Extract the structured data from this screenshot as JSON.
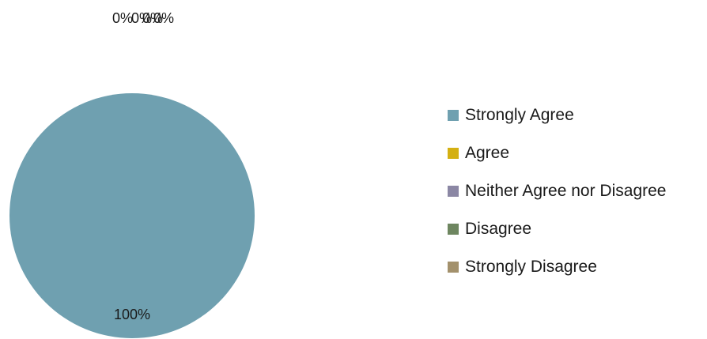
{
  "chart_data": {
    "type": "pie",
    "categories": [
      "Strongly Agree",
      "Agree",
      "Neither Agree nor Disagree",
      "Disagree",
      "Strongly Disagree"
    ],
    "values": [
      100,
      0,
      0,
      0,
      0
    ],
    "data_labels": [
      "100%",
      "0%",
      "0%",
      "0%",
      "0%"
    ],
    "colors": [
      "#6fa0b0",
      "#d4b012",
      "#8b87a4",
      "#6e8660",
      "#a3916c"
    ],
    "legend_position": "right"
  }
}
